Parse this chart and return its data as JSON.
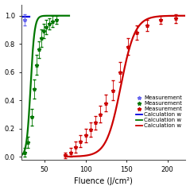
{
  "title": "",
  "xlabel": "Fluence (J/cm²)",
  "ylabel": "",
  "xlim": [
    22,
    222
  ],
  "ylim": [
    -0.02,
    1.08
  ],
  "xticks": [
    50,
    100,
    150,
    200
  ],
  "yticks": [
    0.0,
    0.2,
    0.4,
    0.6,
    0.8,
    1.0
  ],
  "background_color": "#ffffff",
  "blue_line_x": [
    22,
    32
  ],
  "blue_line_y": [
    0.995,
    0.995
  ],
  "blue_line_color": "#0000dd",
  "blue_line_linewidth": 1.6,
  "green_curve_x0": 33,
  "green_curve_k": 0.42,
  "green_curve_xmin": 22,
  "green_curve_xmax": 80,
  "green_curve_color": "#007700",
  "green_curve_linewidth": 1.6,
  "red_curve_x0": 143,
  "red_curve_k": 0.115,
  "red_curve_xmin": 75,
  "red_curve_xmax": 222,
  "red_curve_color": "#cc0000",
  "red_curve_linewidth": 1.6,
  "blue_pts_x": [
    26
  ],
  "blue_pts_y": [
    0.97
  ],
  "blue_pts_yerr": [
    0.04
  ],
  "blue_pts_color": "#6666ee",
  "green_pts_x": [
    26,
    30,
    34,
    37,
    40,
    43,
    46,
    49,
    52,
    56,
    60,
    65
  ],
  "green_pts_y": [
    0.03,
    0.1,
    0.28,
    0.48,
    0.65,
    0.76,
    0.84,
    0.89,
    0.92,
    0.94,
    0.96,
    0.97
  ],
  "green_pts_yerr": [
    0.03,
    0.04,
    0.06,
    0.07,
    0.07,
    0.06,
    0.06,
    0.05,
    0.05,
    0.04,
    0.04,
    0.03
  ],
  "green_pts_color": "#007700",
  "red_pts_x": [
    75,
    82,
    88,
    94,
    100,
    106,
    112,
    118,
    125,
    133,
    142,
    152,
    162,
    175,
    192,
    210
  ],
  "red_pts_y": [
    0.01,
    0.03,
    0.07,
    0.11,
    0.15,
    0.19,
    0.24,
    0.3,
    0.38,
    0.47,
    0.6,
    0.78,
    0.88,
    0.93,
    0.97,
    0.98
  ],
  "red_pts_yerr": [
    0.02,
    0.03,
    0.04,
    0.04,
    0.05,
    0.05,
    0.05,
    0.06,
    0.06,
    0.07,
    0.07,
    0.06,
    0.05,
    0.04,
    0.03,
    0.03
  ],
  "red_pts_color": "#cc0000",
  "marker": "*",
  "markersize": 3.5,
  "capsize": 1.2,
  "elinewidth": 0.6,
  "legend_entries": [
    {
      "label": "Measurement",
      "color": "#6666ee",
      "type": "marker"
    },
    {
      "label": "Measurement",
      "color": "#007700",
      "type": "marker"
    },
    {
      "label": "Measurement",
      "color": "#cc0000",
      "type": "marker"
    },
    {
      "label": "Calculation w",
      "color": "#0000dd",
      "type": "line"
    },
    {
      "label": "Calculation w",
      "color": "#007700",
      "type": "line"
    },
    {
      "label": "Calculation w",
      "color": "#cc0000",
      "type": "line"
    }
  ],
  "legend_fontsize": 5.0,
  "tick_fontsize": 6,
  "xlabel_fontsize": 7
}
